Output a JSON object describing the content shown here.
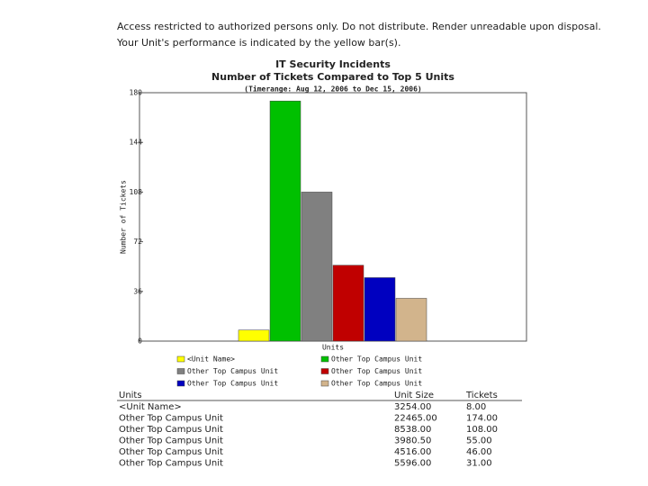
{
  "notice": [
    "Access restricted to authorized persons only. Do not distribute. Render unreadable upon disposal.",
    "Your Unit's performance is indicated by the yellow bar(s)."
  ],
  "chart_data": {
    "type": "bar",
    "title": "IT Security Incidents",
    "subtitle": "Number of Tickets Compared to Top 5 Units",
    "timerange": "(Timerange: Aug 12, 2006 to Dec 15, 2006)",
    "x_label": "Units",
    "y_label": "Number of Tickets",
    "categories": [
      null
    ],
    "series": [
      {
        "name": "<Unit Name>",
        "color": "#ffff00",
        "values": [
          8
        ]
      },
      {
        "name": "Other Top Campus Unit",
        "color": "#00c000",
        "values": [
          174
        ]
      },
      {
        "name": "Other Top Campus Unit",
        "color": "#808080",
        "values": [
          108
        ]
      },
      {
        "name": "Other Top Campus Unit",
        "color": "#c00000",
        "values": [
          55
        ]
      },
      {
        "name": "Other Top Campus Unit",
        "color": "#0000c0",
        "values": [
          46
        ]
      },
      {
        "name": "Other Top Campus Unit",
        "color": "#d2b48c",
        "values": [
          31
        ]
      }
    ],
    "ylim": [
      0,
      180
    ],
    "yticks": [
      0,
      36,
      72,
      108,
      144,
      180
    ]
  },
  "table": {
    "header": [
      "Units",
      "Unit Size",
      "Tickets"
    ],
    "rows": [
      [
        "<Unit Name>",
        "3254.00",
        "8.00"
      ],
      [
        "Other Top Campus Unit",
        "22465.00",
        "174.00"
      ],
      [
        "Other Top Campus Unit",
        "8538.00",
        "108.00"
      ],
      [
        "Other Top Campus Unit",
        "3980.50",
        "55.00"
      ],
      [
        "Other Top Campus Unit",
        "4516.00",
        "46.00"
      ],
      [
        "Other Top Campus Unit",
        "5596.00",
        "31.00"
      ]
    ]
  }
}
